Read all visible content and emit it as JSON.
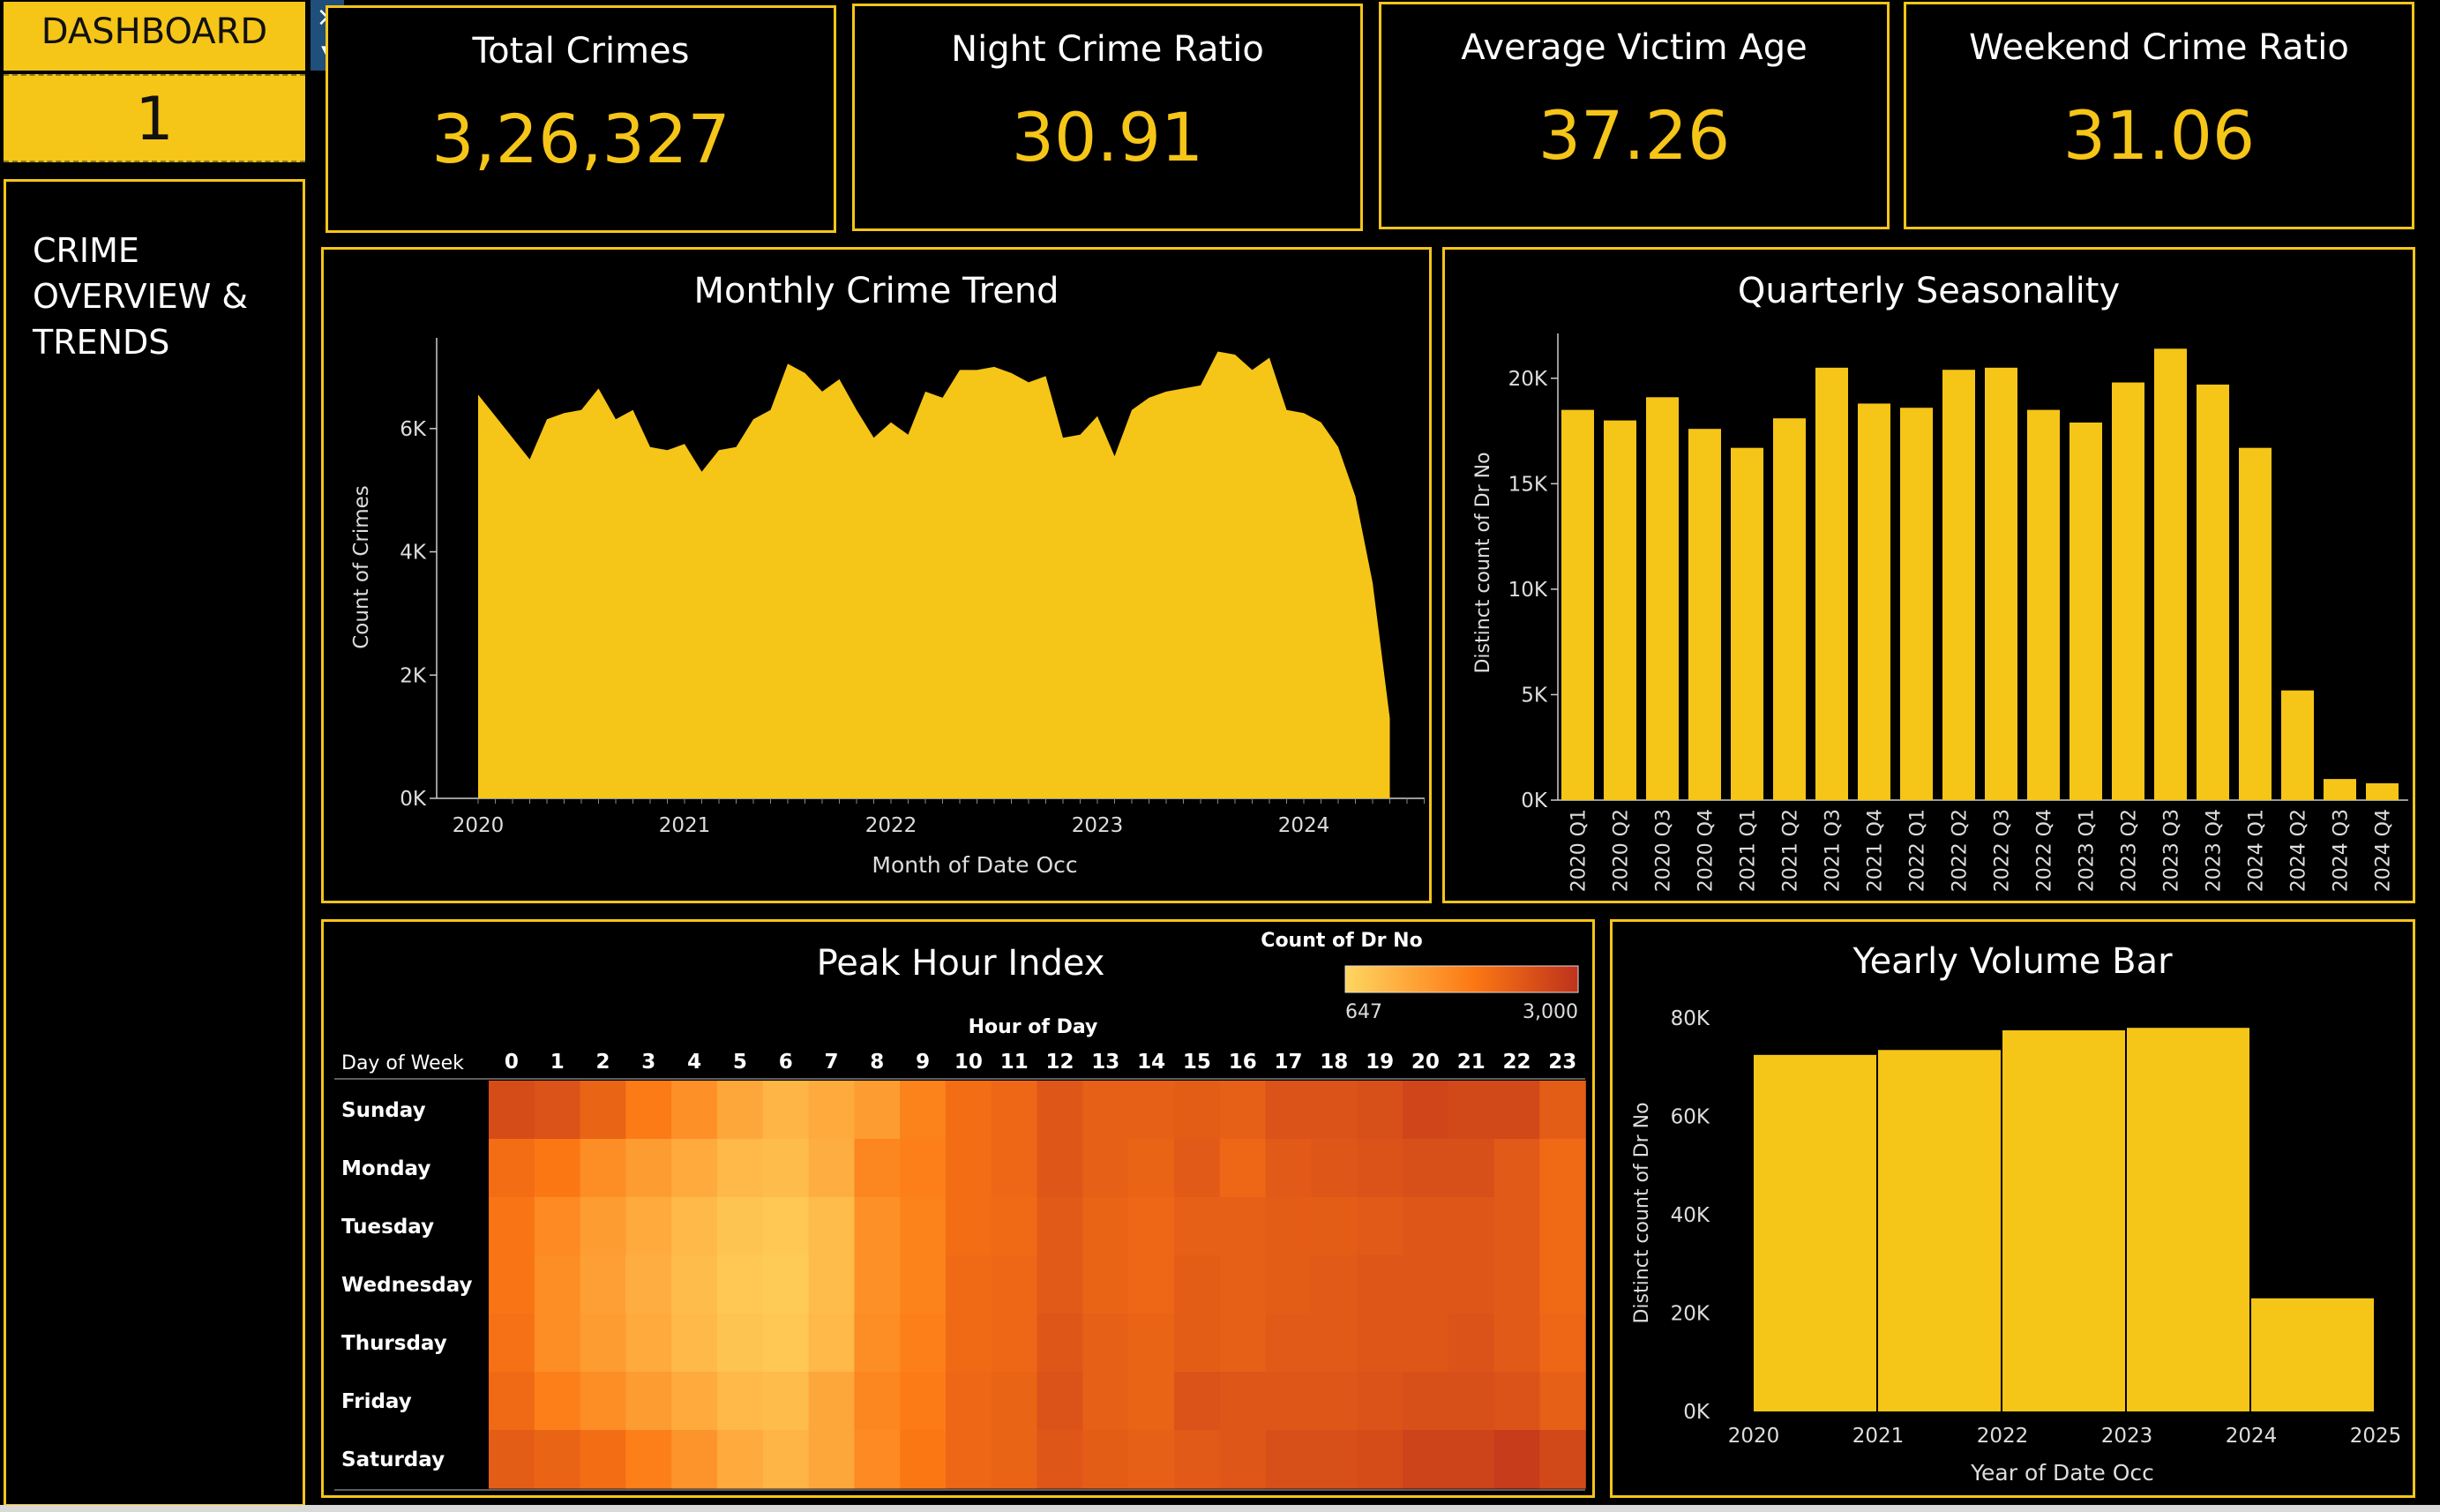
{
  "sidebar": {
    "header": "DASHBOARD",
    "number": "1",
    "section_title": "CRIME\nOVERVIEW &\nTRENDS"
  },
  "kpis": [
    {
      "label": "Total Crimes",
      "value": "3,26,327"
    },
    {
      "label": "Night Crime Ratio",
      "value": "30.91"
    },
    {
      "label": "Average Victim Age",
      "value": "37.26"
    },
    {
      "label": "Weekend Crime Ratio",
      "value": "31.06"
    }
  ],
  "colors": {
    "accent": "#F5C518",
    "background": "#000000",
    "heat_low": "#FFD25E",
    "heat_high": "#C0321B"
  },
  "chart_data": [
    {
      "id": "monthly",
      "type": "area",
      "title": "Monthly Crime Trend",
      "xlabel": "Month of Date Occ",
      "ylabel": "Count of Crimes",
      "x_ticks": [
        "2020",
        "2021",
        "2022",
        "2023",
        "2024"
      ],
      "y_ticks": [
        "0K",
        "2K",
        "4K",
        "6K"
      ],
      "ylim": [
        0,
        7500
      ],
      "x_start": "2020-01",
      "values": [
        6550,
        6200,
        5850,
        5500,
        6150,
        6250,
        6300,
        6650,
        6150,
        6300,
        5700,
        5650,
        5750,
        5300,
        5650,
        5700,
        6150,
        6300,
        7050,
        6900,
        6600,
        6800,
        6300,
        5850,
        6100,
        5900,
        6600,
        6500,
        6950,
        6950,
        7000,
        6900,
        6750,
        6850,
        5850,
        5900,
        6200,
        5550,
        6300,
        6500,
        6600,
        6650,
        6700,
        7250,
        7200,
        6950,
        7150,
        6300,
        6250,
        6100,
        5700,
        4900,
        3500,
        1300
      ]
    },
    {
      "id": "quarterly",
      "type": "bar",
      "title": "Quarterly Seasonality",
      "ylabel": "Distinct count of Dr No",
      "y_ticks": [
        "0K",
        "5K",
        "10K",
        "15K",
        "20K"
      ],
      "ylim": [
        0,
        22500
      ],
      "categories": [
        "2020 Q1",
        "2020 Q2",
        "2020 Q3",
        "2020 Q4",
        "2021 Q1",
        "2021 Q2",
        "2021 Q3",
        "2021 Q4",
        "2022 Q1",
        "2022 Q2",
        "2022 Q3",
        "2022 Q4",
        "2023 Q1",
        "2023 Q2",
        "2023 Q3",
        "2023 Q4",
        "2024 Q1",
        "2024 Q2",
        "2024 Q3",
        "2024 Q4"
      ],
      "values": [
        18500,
        18000,
        19100,
        17600,
        16700,
        18100,
        20500,
        18800,
        18600,
        20400,
        20500,
        18500,
        17900,
        19800,
        21400,
        19700,
        16700,
        5200,
        1000,
        800
      ]
    },
    {
      "id": "peak_hour",
      "type": "heatmap",
      "title": "Peak Hour Index",
      "legend_title": "Count of Dr No",
      "legend_min": "647",
      "legend_max": "3,000",
      "vmin": 647,
      "vmax": 3000,
      "xlabel": "Hour of Day",
      "row_header": "Day of Week",
      "columns": [
        "0",
        "1",
        "2",
        "3",
        "4",
        "5",
        "6",
        "7",
        "8",
        "9",
        "10",
        "11",
        "12",
        "13",
        "14",
        "15",
        "16",
        "17",
        "18",
        "19",
        "20",
        "21",
        "22",
        "23"
      ],
      "rows": [
        "Sunday",
        "Monday",
        "Tuesday",
        "Wednesday",
        "Thursday",
        "Friday",
        "Saturday"
      ],
      "values": [
        [
          2600,
          2500,
          2250,
          1900,
          1600,
          1300,
          1100,
          1250,
          1450,
          1800,
          2100,
          2200,
          2450,
          2300,
          2300,
          2350,
          2300,
          2500,
          2500,
          2550,
          2700,
          2650,
          2650,
          2350
        ],
        [
          2100,
          1950,
          1650,
          1450,
          1250,
          1050,
          1000,
          1200,
          1750,
          1850,
          2100,
          2200,
          2450,
          2300,
          2250,
          2400,
          2200,
          2400,
          2450,
          2500,
          2550,
          2550,
          2400,
          2150
        ],
        [
          2000,
          1700,
          1450,
          1250,
          1050,
          900,
          850,
          1000,
          1600,
          1800,
          2100,
          2150,
          2400,
          2250,
          2200,
          2300,
          2300,
          2350,
          2350,
          2400,
          2450,
          2450,
          2400,
          2150
        ],
        [
          2000,
          1650,
          1400,
          1200,
          1000,
          850,
          800,
          1000,
          1600,
          1800,
          2150,
          2200,
          2400,
          2250,
          2200,
          2350,
          2300,
          2350,
          2400,
          2450,
          2450,
          2450,
          2400,
          2150
        ],
        [
          2050,
          1650,
          1450,
          1250,
          1050,
          900,
          850,
          1050,
          1650,
          1850,
          2150,
          2200,
          2450,
          2300,
          2250,
          2350,
          2300,
          2400,
          2400,
          2450,
          2450,
          2500,
          2400,
          2200
        ],
        [
          2150,
          1850,
          1650,
          1450,
          1250,
          1050,
          1000,
          1300,
          1750,
          1900,
          2200,
          2250,
          2500,
          2300,
          2250,
          2500,
          2450,
          2450,
          2450,
          2500,
          2550,
          2550,
          2500,
          2300
        ],
        [
          2350,
          2250,
          2100,
          1850,
          1550,
          1250,
          1100,
          1300,
          1700,
          1950,
          2200,
          2250,
          2450,
          2350,
          2300,
          2400,
          2450,
          2550,
          2550,
          2600,
          2750,
          2750,
          2850,
          2650
        ]
      ]
    },
    {
      "id": "yearly",
      "type": "bar",
      "title": "Yearly Volume Bar",
      "xlabel": "Year of Date Occ",
      "ylabel": "Distinct count of Dr No",
      "y_ticks": [
        "0K",
        "20K",
        "40K",
        "60K",
        "80K"
      ],
      "ylim": [
        0,
        87000
      ],
      "x_ticks": [
        "2020",
        "2021",
        "2022",
        "2023",
        "2024",
        "2025"
      ],
      "categories": [
        "2020",
        "2021",
        "2022",
        "2023",
        "2024"
      ],
      "values": [
        72500,
        73500,
        77500,
        78000,
        23000
      ]
    }
  ]
}
